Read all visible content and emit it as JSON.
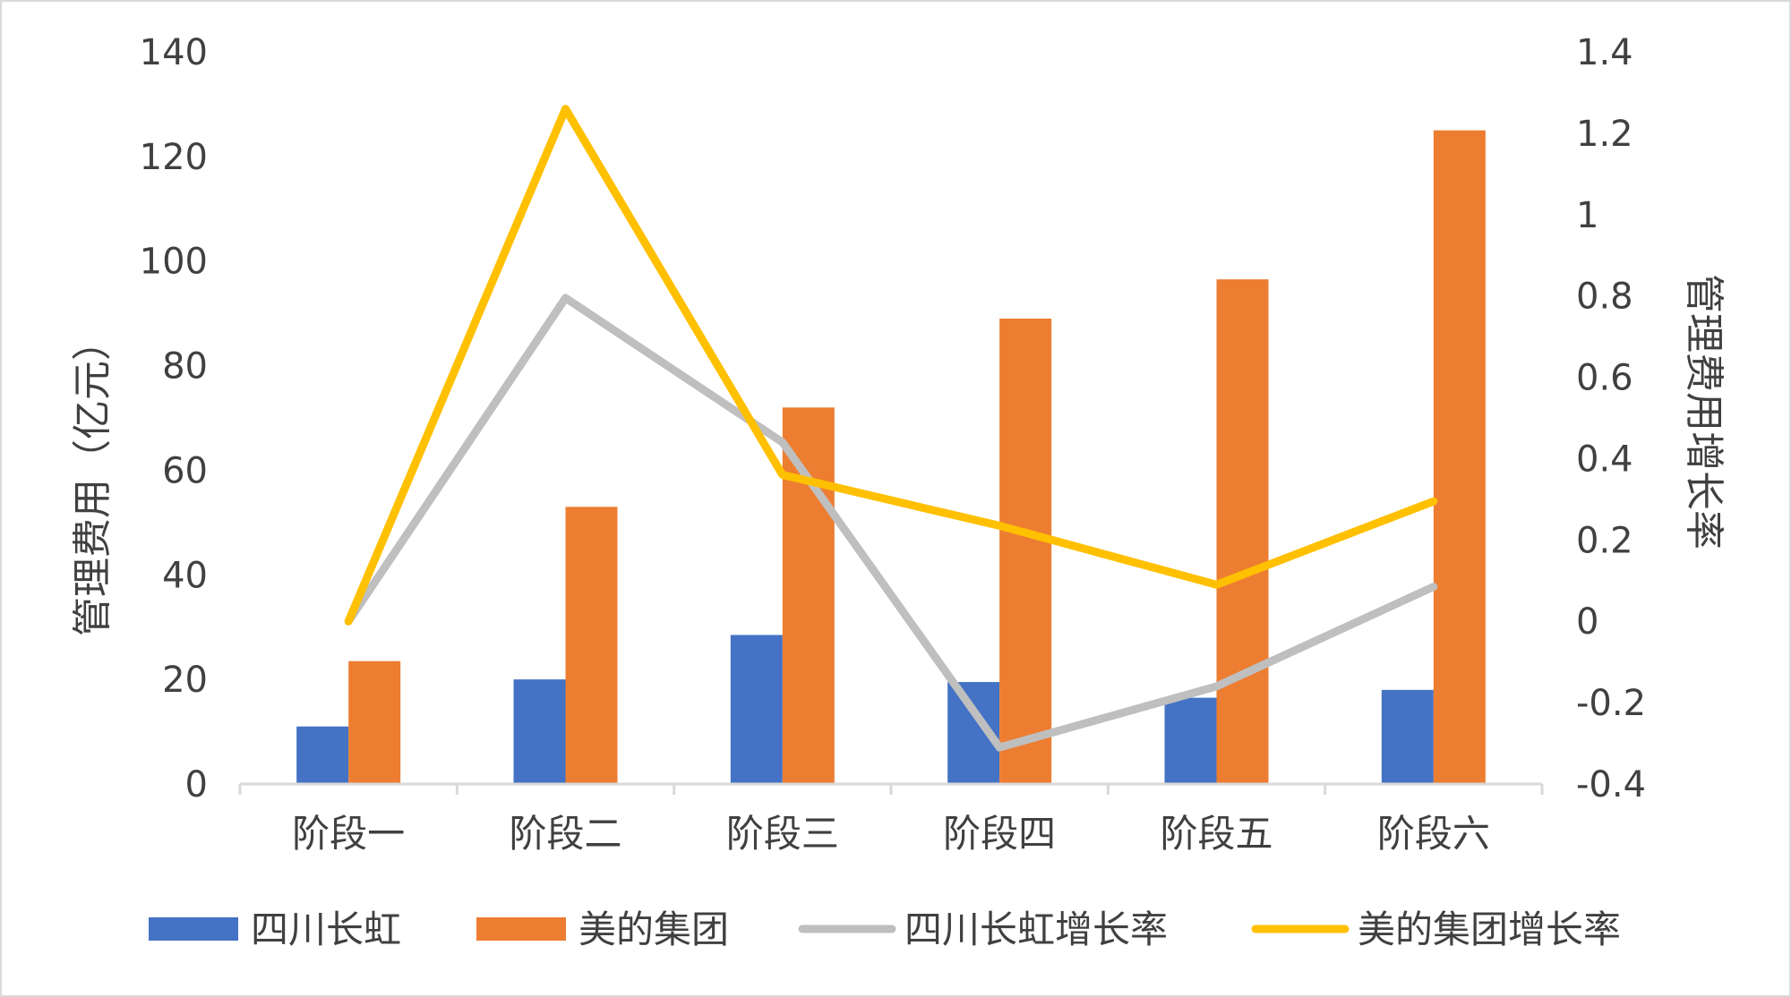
{
  "chart_data": {
    "type": "bar",
    "categories": [
      "阶段一",
      "阶段二",
      "阶段三",
      "阶段四",
      "阶段五",
      "阶段六"
    ],
    "y_left": {
      "label": "管理费用（亿元）",
      "ticks": [
        "0",
        "20",
        "40",
        "60",
        "80",
        "100",
        "120",
        "140"
      ],
      "range": [
        0,
        140
      ]
    },
    "y_right": {
      "label": "管理费用增长率",
      "ticks": [
        "-0.4",
        "-0.2",
        "0",
        "0.2",
        "0.4",
        "0.6",
        "0.8",
        "1",
        "1.2",
        "1.4"
      ],
      "range": [
        -0.4,
        1.4
      ]
    },
    "bar_series": [
      {
        "name": "四川长虹",
        "color": "#4472c4",
        "values": [
          11,
          20,
          28.5,
          19.5,
          16.5,
          18
        ]
      },
      {
        "name": "美的集团",
        "color": "#ed7d31",
        "values": [
          23.5,
          53,
          72,
          89,
          96.5,
          125
        ]
      }
    ],
    "line_series": [
      {
        "name": "四川长虹增长率",
        "color": "#bfbfbf",
        "values": [
          0.0,
          0.795,
          0.44,
          -0.31,
          -0.16,
          0.085
        ]
      },
      {
        "name": "美的集团增长率",
        "color": "#ffc000",
        "values": [
          0.0,
          1.26,
          0.36,
          0.235,
          0.09,
          0.295
        ]
      }
    ],
    "grid": false,
    "legend_placement": "bottom"
  }
}
